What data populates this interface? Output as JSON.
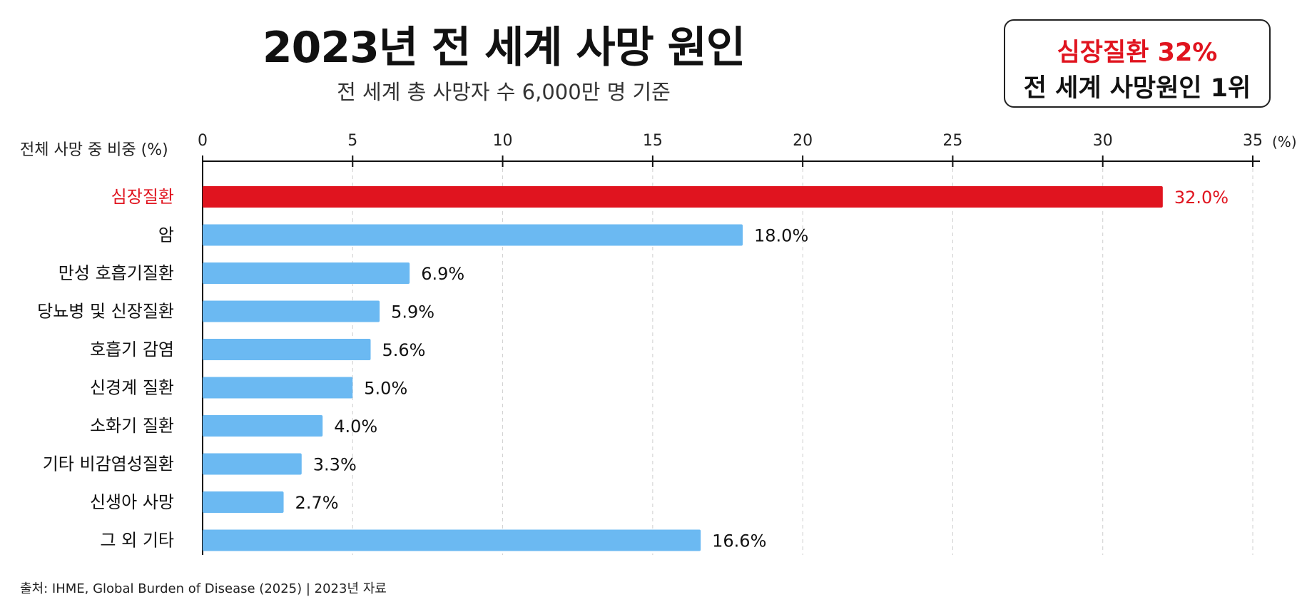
{
  "title": "2023년 전 세계 사망 원인",
  "subtitle": "전 세계 총 사망자 수 6,000만 명 기준",
  "callout": {
    "line1": "심장질환 32%",
    "line2": "전 세계 사망원인 1위"
  },
  "source": "출처: IHME, Global Burden of Disease (2025)   |   2023년 자료",
  "colors": {
    "highlight": "#e0141f",
    "bar": "#6bb9f2",
    "axis": "#111111",
    "grid": "#cfcfcf"
  },
  "chart_data": {
    "type": "bar",
    "orientation": "horizontal",
    "xlabel": "전체 사망 중 비중 (%)",
    "xunit": "(%)",
    "xlim": [
      0,
      35
    ],
    "xticks": [
      "0",
      "5",
      "10",
      "15",
      "20",
      "25",
      "30",
      "35"
    ],
    "grid": true,
    "categories": [
      "심장질환",
      "암",
      "만성 호흡기질환",
      "당뇨병 및 신장질환",
      "호흡기 감염",
      "신경계 질환",
      "소화기 질환",
      "기타 비감염성질환",
      "신생아 사망",
      "그 외 기타"
    ],
    "values": [
      32.0,
      18.0,
      6.9,
      5.9,
      5.6,
      5.0,
      4.0,
      3.3,
      2.7,
      16.6
    ],
    "value_labels": [
      "32.0%",
      "18.0%",
      "6.9%",
      "5.9%",
      "5.6%",
      "5.0%",
      "4.0%",
      "3.3%",
      "2.7%",
      "16.6%"
    ],
    "highlight_index": 0
  }
}
